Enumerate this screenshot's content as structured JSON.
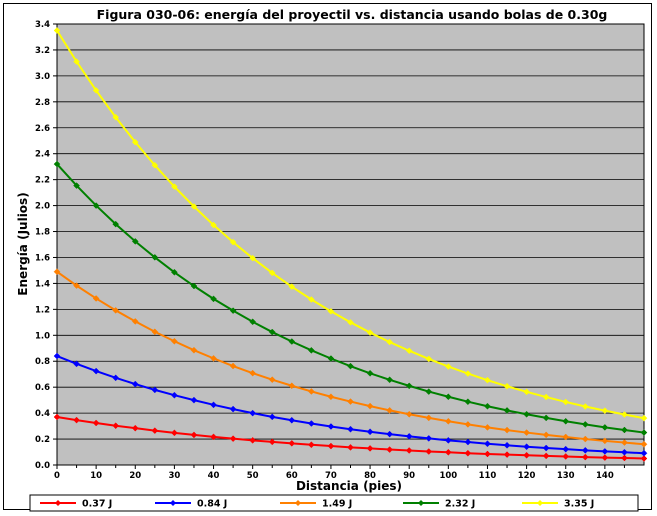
{
  "chart_data": {
    "type": "line",
    "title": "Figura 030-06: energía del proyectil vs. distancia usando bolas de 0.30g",
    "xlabel": "Distancia (pies)",
    "ylabel": "Energía (Julios)",
    "xlim": [
      0,
      150
    ],
    "ylim": [
      0,
      3.4
    ],
    "x_ticks": [
      "0",
      "10",
      "20",
      "30",
      "40",
      "50",
      "60",
      "70",
      "80",
      "90",
      "100",
      "110",
      "120",
      "130",
      "140"
    ],
    "y_ticks": [
      "0.0",
      "0.2",
      "0.4",
      "0.6",
      "0.8",
      "1.0",
      "1.2",
      "1.4",
      "1.6",
      "1.8",
      "2.0",
      "2.2",
      "2.4",
      "2.6",
      "2.8",
      "3.0",
      "3.2",
      "3.4"
    ],
    "grid": "horizontal",
    "plot_background": "#c0c0c0",
    "legend_position": "bottom",
    "x": [
      0,
      5,
      10,
      15,
      20,
      25,
      30,
      35,
      40,
      45,
      50,
      55,
      60,
      65,
      70,
      75,
      80,
      85,
      90,
      95,
      100,
      105,
      110,
      115,
      120,
      125,
      130,
      135,
      140,
      145,
      150
    ],
    "series": [
      {
        "name": "0.37 J",
        "color": "#ff0000",
        "values": [
          0.37,
          0.346,
          0.324,
          0.303,
          0.284,
          0.265,
          0.248,
          0.232,
          0.217,
          0.203,
          0.19,
          0.178,
          0.167,
          0.156,
          0.146,
          0.136,
          0.128,
          0.119,
          0.112,
          0.104,
          0.098,
          0.091,
          0.085,
          0.08,
          0.075,
          0.07,
          0.066,
          0.061,
          0.057,
          0.054,
          0.05
        ]
      },
      {
        "name": "0.84 J",
        "color": "#0000ff",
        "values": [
          0.84,
          0.78,
          0.724,
          0.672,
          0.624,
          0.579,
          0.538,
          0.5,
          0.464,
          0.431,
          0.4,
          0.371,
          0.345,
          0.32,
          0.297,
          0.276,
          0.256,
          0.238,
          0.221,
          0.205,
          0.19,
          0.177,
          0.164,
          0.152,
          0.141,
          0.131,
          0.122,
          0.113,
          0.105,
          0.098,
          0.091
        ]
      },
      {
        "name": "1.49 J",
        "color": "#ff8000",
        "values": [
          1.49,
          1.383,
          1.284,
          1.192,
          1.107,
          1.027,
          0.954,
          0.885,
          0.822,
          0.763,
          0.708,
          0.658,
          0.611,
          0.567,
          0.526,
          0.489,
          0.454,
          0.421,
          0.391,
          0.363,
          0.337,
          0.313,
          0.29,
          0.269,
          0.25,
          0.232,
          0.216,
          0.2,
          0.186,
          0.173,
          0.16
        ]
      },
      {
        "name": "2.32 J",
        "color": "#008000",
        "values": [
          2.32,
          2.154,
          2.0,
          1.857,
          1.724,
          1.601,
          1.486,
          1.38,
          1.281,
          1.19,
          1.104,
          1.025,
          0.952,
          0.884,
          0.821,
          0.762,
          0.707,
          0.657,
          0.61,
          0.566,
          0.526,
          0.488,
          0.453,
          0.421,
          0.391,
          0.363,
          0.337,
          0.313,
          0.29,
          0.27,
          0.25
        ]
      },
      {
        "name": "3.35 J",
        "color": "#ffff00",
        "values": [
          3.35,
          3.11,
          2.888,
          2.681,
          2.489,
          2.311,
          2.146,
          1.993,
          1.85,
          1.718,
          1.595,
          1.481,
          1.375,
          1.276,
          1.185,
          1.1,
          1.021,
          0.948,
          0.881,
          0.818,
          0.759,
          0.705,
          0.654,
          0.607,
          0.564,
          0.524,
          0.486,
          0.451,
          0.419,
          0.389,
          0.361
        ]
      }
    ]
  }
}
